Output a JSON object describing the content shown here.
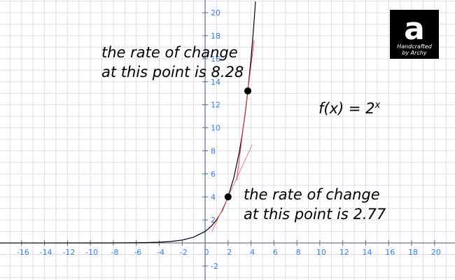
{
  "chart_data": {
    "type": "line",
    "xlim": [
      -17.88,
      21.78
    ],
    "ylim": [
      -3.22,
      21.1
    ],
    "xticks": [
      -16,
      -14,
      -12,
      -10,
      -8,
      -6,
      -4,
      -2,
      0,
      2,
      4,
      6,
      8,
      10,
      12,
      14,
      16,
      18,
      20
    ],
    "yticks": [
      -2,
      2,
      4,
      6,
      8,
      10,
      12,
      14,
      16,
      18,
      20
    ],
    "grid": true,
    "grid_step": 1,
    "grid_color": "#dcdcf5",
    "axis_color": "#5a6a8a",
    "tick_color": "#3b7dd8",
    "series": [
      {
        "color": "#000000",
        "x": [
          -18,
          -14,
          -10,
          -8,
          -6,
          -5,
          -4,
          -3,
          -2,
          -1,
          0,
          0.5,
          1,
          1.5,
          2,
          2.5,
          3,
          3.25,
          3.5,
          3.75,
          4,
          4.1,
          4.2,
          4.3,
          4.39
        ],
        "values": [
          3.8e-06,
          6.1e-05,
          0.000977,
          0.0039,
          0.0156,
          0.03125,
          0.0625,
          0.125,
          0.25,
          0.5,
          1,
          1.414,
          2,
          2.828,
          4,
          5.657,
          8,
          9.514,
          11.314,
          13.454,
          16,
          17.148,
          18.379,
          19.698,
          20.97
        ]
      },
      {
        "color": "#f07a80",
        "x": [
          0.6,
          4.1
        ],
        "values": [
          0.99,
          8.52
        ]
      },
      {
        "color": "#e0404a",
        "x": [
          2.75,
          4.27
        ],
        "values": [
          5.44,
          17.6
        ]
      }
    ],
    "points": {
      "color": "#000000",
      "x": [
        2,
        3.72
      ],
      "values": [
        4,
        13.2
      ]
    },
    "annotations": [
      {
        "lines": [
          "the rate of change",
          "at this point is 8.28"
        ]
      },
      {
        "lines": [
          "the rate of change",
          "at this point is 2.77"
        ]
      }
    ],
    "formula": "f(x) = 2",
    "formula_exponent": "x",
    "logo": {
      "letter": "a",
      "line1": "Handcrafted",
      "line2": "by Archy"
    }
  }
}
